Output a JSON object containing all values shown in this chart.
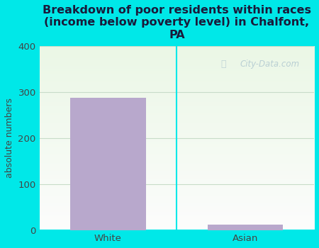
{
  "categories": [
    "White",
    "Asian"
  ],
  "values": [
    288,
    13
  ],
  "bar_color": "#b8a8cc",
  "title": "Breakdown of poor residents within races\n(income below poverty level) in Chalfont,\nPA",
  "ylabel": "absolute numbers",
  "ylim": [
    0,
    400
  ],
  "yticks": [
    0,
    100,
    200,
    300,
    400
  ],
  "bg_color": "#00e8e8",
  "plot_bg_left": "#d8ecd8",
  "plot_bg_right": "#eef8ee",
  "plot_bg_bottom": "#f8fff8",
  "title_fontsize": 11.5,
  "axis_label_fontsize": 9,
  "tick_fontsize": 9.5,
  "watermark_text": "City-Data.com",
  "watermark_color": "#b0c8d0",
  "bar_width": 0.55,
  "grid_color": "#c8dcc8",
  "title_color": "#1a1a3a",
  "asian_value": 13,
  "divider_color": "#00e8e8"
}
